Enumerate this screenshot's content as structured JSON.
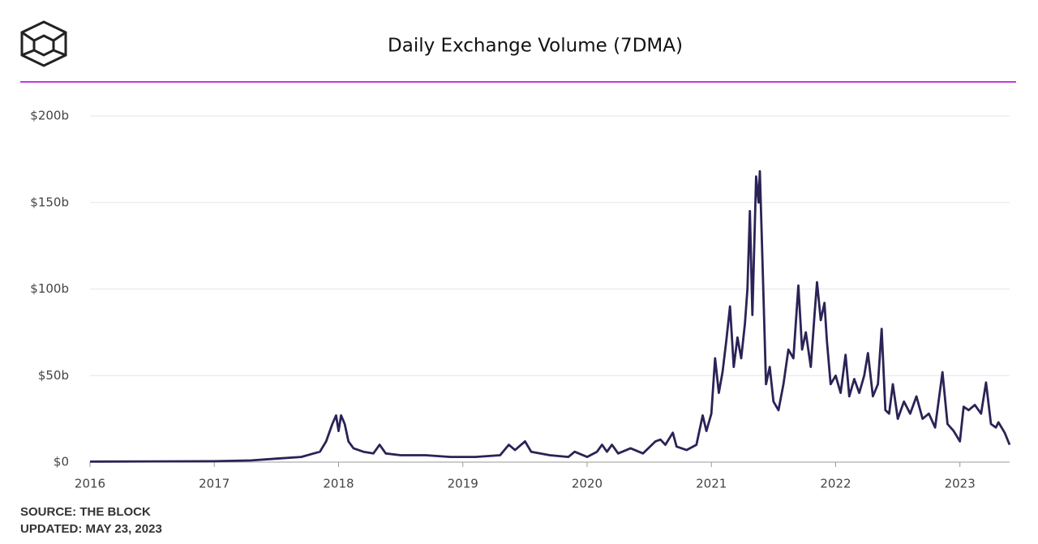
{
  "chart_data": {
    "type": "line",
    "title": "Daily Exchange Volume (7DMA)",
    "source": "SOURCE: THE BLOCK",
    "updated": "UPDATED: MAY 23, 2023",
    "xlim": [
      2016,
      2023.4
    ],
    "xticks": [
      2016,
      2017,
      2018,
      2019,
      2020,
      2021,
      2022,
      2023
    ],
    "ylim": [
      0,
      200
    ],
    "yticks": [
      {
        "value": 0,
        "label": "$0"
      },
      {
        "value": 50,
        "label": "$50b"
      },
      {
        "value": 100,
        "label": "$100b"
      },
      {
        "value": 150,
        "label": "$150b"
      },
      {
        "value": 200,
        "label": "$200b"
      }
    ],
    "grid": true,
    "x": [
      2016.0,
      2016.5,
      2017.0,
      2017.3,
      2017.5,
      2017.7,
      2017.85,
      2017.9,
      2017.95,
      2017.98,
      2018.0,
      2018.02,
      2018.05,
      2018.08,
      2018.12,
      2018.2,
      2018.28,
      2018.33,
      2018.38,
      2018.5,
      2018.7,
      2018.9,
      2019.1,
      2019.3,
      2019.37,
      2019.42,
      2019.5,
      2019.55,
      2019.7,
      2019.85,
      2019.9,
      2020.0,
      2020.08,
      2020.12,
      2020.16,
      2020.2,
      2020.25,
      2020.35,
      2020.45,
      2020.55,
      2020.59,
      2020.63,
      2020.69,
      2020.72,
      2020.8,
      2020.88,
      2020.93,
      2020.96,
      2021.0,
      2021.03,
      2021.06,
      2021.09,
      2021.12,
      2021.15,
      2021.18,
      2021.21,
      2021.24,
      2021.27,
      2021.29,
      2021.31,
      2021.33,
      2021.36,
      2021.38,
      2021.39,
      2021.41,
      2021.44,
      2021.47,
      2021.5,
      2021.54,
      2021.58,
      2021.62,
      2021.66,
      2021.7,
      2021.73,
      2021.76,
      2021.8,
      2021.83,
      2021.85,
      2021.88,
      2021.91,
      2021.93,
      2021.96,
      2022.0,
      2022.04,
      2022.08,
      2022.11,
      2022.15,
      2022.19,
      2022.23,
      2022.26,
      2022.3,
      2022.34,
      2022.37,
      2022.4,
      2022.43,
      2022.46,
      2022.5,
      2022.55,
      2022.6,
      2022.65,
      2022.7,
      2022.75,
      2022.8,
      2022.86,
      2022.9,
      2022.95,
      2023.0,
      2023.03,
      2023.07,
      2023.12,
      2023.17,
      2023.21,
      2023.25,
      2023.29,
      2023.31,
      2023.36,
      2023.4
    ],
    "series": [
      {
        "name": "Daily Exchange Volume",
        "color": "#2a2356",
        "values": [
          0.3,
          0.4,
          0.5,
          1,
          2,
          3,
          6,
          12,
          22,
          27,
          18,
          27,
          22,
          12,
          8,
          6,
          5,
          10,
          5,
          4,
          4,
          3,
          3,
          4,
          10,
          7,
          12,
          6,
          4,
          3,
          6,
          3,
          6,
          10,
          6,
          10,
          5,
          8,
          5,
          12,
          13,
          10,
          17,
          9,
          7,
          10,
          27,
          18,
          28,
          60,
          40,
          52,
          70,
          90,
          55,
          72,
          60,
          80,
          100,
          145,
          85,
          165,
          150,
          168,
          120,
          45,
          55,
          35,
          30,
          45,
          65,
          60,
          102,
          65,
          75,
          55,
          85,
          104,
          82,
          92,
          70,
          45,
          50,
          40,
          62,
          38,
          48,
          40,
          50,
          63,
          38,
          45,
          77,
          30,
          28,
          45,
          25,
          35,
          28,
          38,
          25,
          28,
          20,
          52,
          22,
          18,
          12,
          32,
          30,
          33,
          28,
          46,
          22,
          20,
          23,
          17,
          10
        ]
      }
    ]
  }
}
